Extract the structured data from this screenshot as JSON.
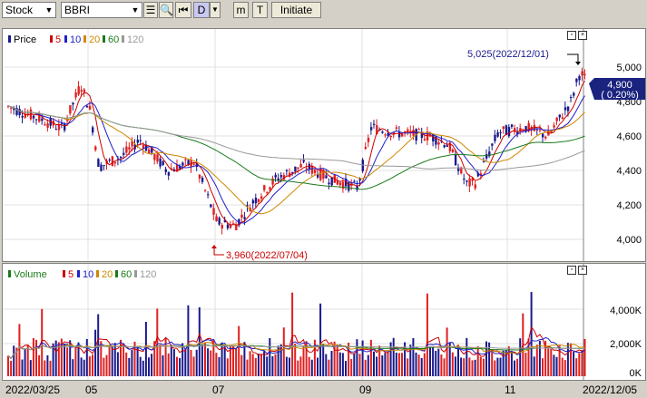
{
  "toolbar": {
    "market_select": "Stock",
    "symbol_input": "BBRI",
    "period_button": "D",
    "minute_button": "m",
    "tick_button": "T",
    "initiate_button": "Initiate"
  },
  "price_panel": {
    "legend": {
      "title": "Price",
      "ma": [
        "5",
        "10",
        "20",
        "60",
        "120"
      ]
    },
    "y_ticks": [
      "5,000",
      "4,800",
      "4,600",
      "4,400",
      "4,200",
      "4,000"
    ],
    "current_price": "4,900",
    "current_change": "( 0.20%)",
    "high_annotation": "5,025(2022/12/01)",
    "low_annotation": "3,960(2022/07/04)"
  },
  "volume_panel": {
    "legend": {
      "title": "Volume",
      "ma": [
        "5",
        "10",
        "20",
        "60",
        "120"
      ]
    },
    "y_ticks": [
      "4,000K",
      "2,000K",
      "0K"
    ]
  },
  "x_axis": {
    "labels": [
      "2022/03/25",
      "05",
      "07",
      "09",
      "11",
      "2022/12/05"
    ]
  },
  "colors": {
    "up": "#e02020",
    "down": "#1a1a8c",
    "ma5": "#cc0000",
    "ma10": "#2020cc",
    "ma20": "#cc8800",
    "ma60": "#1a7a1a",
    "ma120": "#999999",
    "price_box": "#1a237e"
  }
}
